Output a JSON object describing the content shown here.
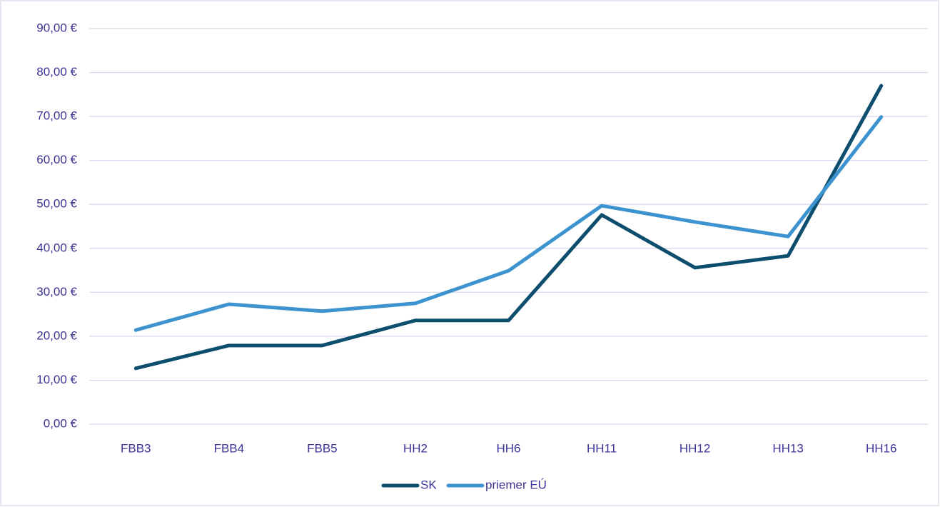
{
  "chart_data": {
    "type": "line",
    "categories": [
      "FBB3",
      "FBB4",
      "FBB5",
      "HH2",
      "HH6",
      "HH11",
      "HH12",
      "HH13",
      "HH16"
    ],
    "series": [
      {
        "name": "SK",
        "color": "#0d4d6d",
        "values": [
          12.7,
          17.9,
          17.9,
          23.6,
          23.6,
          47.6,
          35.6,
          38.3,
          77.0
        ]
      },
      {
        "name": "priemer EÚ",
        "color": "#3d93cf",
        "values": [
          21.4,
          27.3,
          25.7,
          27.5,
          34.9,
          49.7,
          46.0,
          42.7,
          69.9
        ]
      }
    ],
    "ylim": [
      0,
      90
    ],
    "yticks": [
      {
        "value": 0,
        "label": "0,00 €"
      },
      {
        "value": 10,
        "label": "10,00 €"
      },
      {
        "value": 20,
        "label": "20,00 €"
      },
      {
        "value": 30,
        "label": "30,00 €"
      },
      {
        "value": 40,
        "label": "40,00 €"
      },
      {
        "value": 50,
        "label": "50,00 €"
      },
      {
        "value": 60,
        "label": "60,00 €"
      },
      {
        "value": 70,
        "label": "70,00 €"
      },
      {
        "value": 80,
        "label": "80,00 €"
      },
      {
        "value": 90,
        "label": "90,00 €"
      }
    ],
    "grid": true,
    "legend": "bottom"
  }
}
